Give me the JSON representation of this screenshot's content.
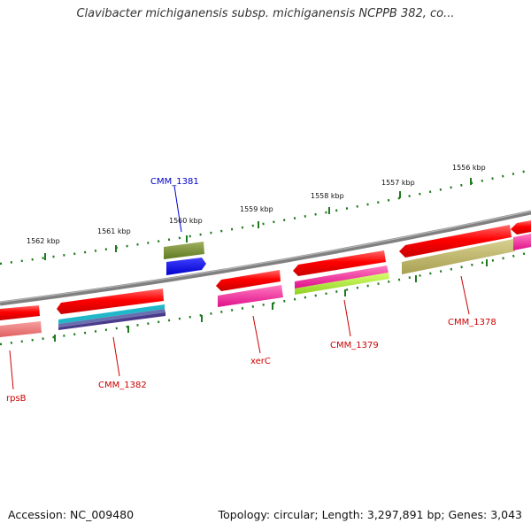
{
  "title": "Clavibacter michiganensis subsp. michiganensis NCPPB 382, co...",
  "accession_text": "Accession: NC_009480",
  "summary_text": "Topology: circular; Length: 3,297,891 bp; Genes: 3,043",
  "scale_labels": [
    "1562 kbp",
    "1561 kbp",
    "1560 kbp",
    "1559 kbp",
    "1558 kbp",
    "1557 kbp",
    "1556 kbp"
  ],
  "gene_labels": {
    "cmm_1381": "CMM_1381",
    "cmm_1382": "CMM_1382",
    "rpsb": "rpsB",
    "xerc": "xerC",
    "cmm_1379": "CMM_1379",
    "cmm_1378": "CMM_1378"
  },
  "colors": {
    "backbone": "#808080",
    "tick_marks": "#1f7a1f",
    "cds": "#ff0000",
    "label_red": "#cc0000",
    "label_blue": "#0000cc"
  }
}
